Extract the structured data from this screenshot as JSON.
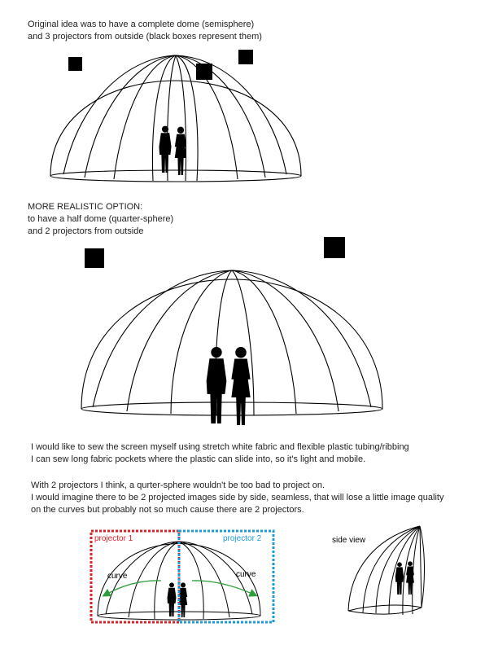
{
  "intro": {
    "line1": "Original idea was to have a complete dome (semisphere)",
    "line2": "and 3 projectors from outside (black boxes represent them)"
  },
  "realistic": {
    "line1": "MORE REALISTIC OPTION:",
    "line2": "to have a half dome (quarter-sphere)",
    "line3": "and 2 projectors from outside"
  },
  "sew": {
    "line1": "I would like to sew the screen myself using stretch white fabric and flexible plastic tubing/ribbing",
    "line2": "I can sew long fabric pockets where the plastic can slide into, so it's light and mobile."
  },
  "projectors_note": {
    "line1": "With 2 projectors I think, a qurter-sphere wouldn't be too bad to project on.",
    "line2": "I would imagine there to be 2 projected images side by side, seamless, that will lose a little image quality",
    "line3": "on the curves but probably not so much cause there are 2 projectors."
  },
  "diagram": {
    "projector1": "projector 1",
    "projector2": "projector 2",
    "curve_left": "curve",
    "curve_right": "curve",
    "side_view": "side view"
  },
  "colors": {
    "projector1": "#e01f26",
    "projector2": "#1e9bd7",
    "curve_arrow": "#2e9e3c",
    "ink": "#000000"
  }
}
